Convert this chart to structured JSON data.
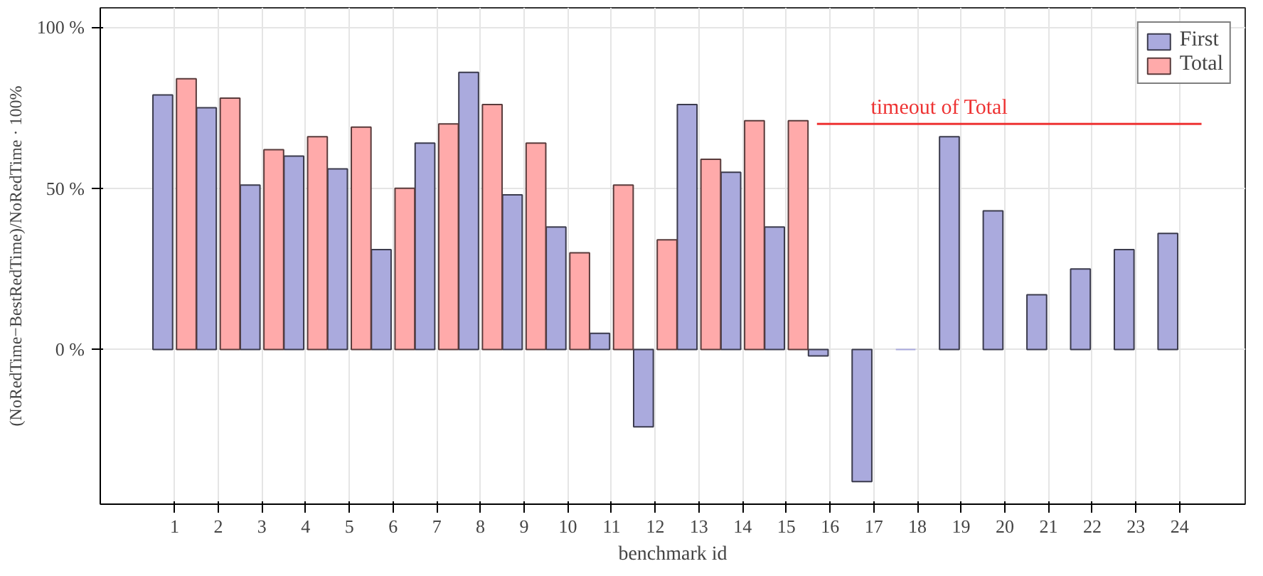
{
  "chart_data": {
    "type": "bar",
    "xlabel": "benchmark id",
    "ylabel": "(NoRedTime−BestRedTime)/NoRedTime · 100%",
    "x": [
      1,
      2,
      3,
      4,
      5,
      6,
      7,
      8,
      9,
      10,
      11,
      12,
      13,
      14,
      15,
      16,
      17,
      18,
      19,
      20,
      21,
      22,
      23,
      24
    ],
    "xlim": [
      -0.7,
      25.5
    ],
    "xticks": [
      1,
      2,
      3,
      4,
      5,
      6,
      7,
      8,
      9,
      10,
      11,
      12,
      13,
      14,
      15,
      16,
      17,
      18,
      19,
      20,
      21,
      22,
      23,
      24
    ],
    "ylim": [
      -48,
      106
    ],
    "yticks": [
      {
        "value": 0,
        "label": "0 %"
      },
      {
        "value": 50,
        "label": "50 %"
      },
      {
        "value": 100,
        "label": "100 %"
      }
    ],
    "series": [
      {
        "name": "First",
        "color": "#aaaadd",
        "values": [
          79,
          75,
          51,
          60,
          56,
          31,
          64,
          86,
          48,
          38,
          5,
          -24,
          76,
          55,
          38,
          -2,
          -41,
          0,
          66,
          43,
          17,
          25,
          31,
          36
        ]
      },
      {
        "name": "Total",
        "color": "#ffaaaa",
        "values": [
          84,
          78,
          62,
          66,
          69,
          50,
          70,
          76,
          64,
          30,
          51,
          34,
          59,
          71,
          71,
          null,
          null,
          null,
          null,
          null,
          null,
          null,
          null,
          null
        ]
      },
      {
        "type": "line",
        "color": "#ee3333",
        "x": [
          15.7,
          24.5
        ],
        "values": [
          70,
          70
        ]
      }
    ],
    "annotations": [
      {
        "text": "timeout of Total",
        "x": 18.5,
        "y": 70
      }
    ],
    "grid": true,
    "legend": "top right"
  }
}
